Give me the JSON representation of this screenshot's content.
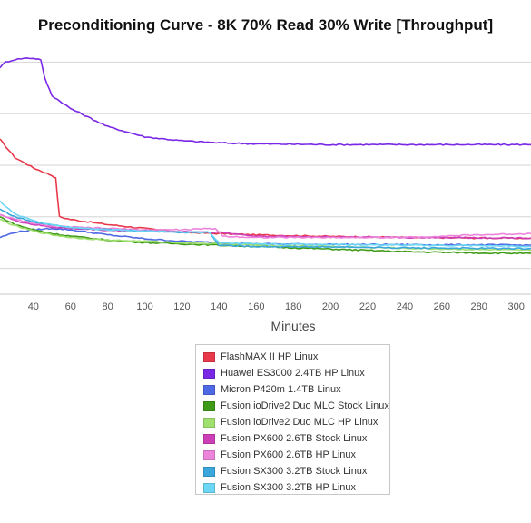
{
  "chart_data": {
    "type": "line",
    "title": "Preconditioning Curve - 8K 70% Read 30% Write [Throughput]",
    "xlabel": "Minutes",
    "ylabel": "",
    "xlim": [
      22,
      308
    ],
    "ylim": [
      0,
      100
    ],
    "x_ticks": [
      "40",
      "60",
      "80",
      "100",
      "120",
      "140",
      "160",
      "180",
      "200",
      "220",
      "240",
      "260",
      "280",
      "300"
    ],
    "x_tick_values": [
      40,
      60,
      80,
      100,
      120,
      140,
      160,
      180,
      200,
      220,
      240,
      260,
      280,
      300
    ],
    "y_grid_values": [
      10,
      30,
      50,
      70,
      90
    ],
    "grid": "horizontal",
    "legend_position": "bottom",
    "series": [
      {
        "name": "FlashMAX II HP Linux",
        "color": "#e8394a",
        "x": [
          22,
          30,
          40,
          50,
          52,
          54,
          60,
          80,
          100,
          120,
          140,
          160,
          180,
          200,
          240,
          280,
          308
        ],
        "y": [
          60,
          53,
          49,
          46,
          45,
          30,
          29,
          27,
          25.5,
          24,
          23.5,
          23,
          22.7,
          22.4,
          22,
          21.8,
          21.7
        ]
      },
      {
        "name": "Huawei ES3000 2.4TB HP Linux",
        "color": "#7a28e6",
        "x": [
          22,
          25,
          30,
          35,
          40,
          44,
          46,
          50,
          60,
          80,
          100,
          120,
          140,
          160,
          200,
          240,
          280,
          308
        ],
        "y": [
          88,
          90,
          91,
          91.5,
          91.5,
          91,
          84,
          77,
          72,
          65,
          61,
          59.5,
          58.7,
          58.3,
          58,
          58,
          58,
          58
        ]
      },
      {
        "name": "Micron P420m 1.4TB Linux",
        "color": "#4f68e4",
        "x": [
          22,
          30,
          40,
          50,
          60,
          80,
          100,
          120,
          140,
          160,
          200,
          240,
          280,
          308
        ],
        "y": [
          22,
          24,
          25,
          25.5,
          25,
          23,
          21.5,
          20.5,
          20,
          19.5,
          19.3,
          19.2,
          19.1,
          19
        ]
      },
      {
        "name": "Fusion ioDrive2 Duo MLC Stock Linux",
        "color": "#3f9a18",
        "x": [
          22,
          30,
          40,
          50,
          60,
          80,
          100,
          120,
          140,
          160,
          200,
          240,
          280,
          308
        ],
        "y": [
          30,
          27,
          25,
          23.5,
          22.5,
          21,
          20,
          19.5,
          19,
          18.5,
          17.5,
          16.5,
          16,
          15.8
        ]
      },
      {
        "name": "Fusion ioDrive2 Duo MLC HP Linux",
        "color": "#a0e06e",
        "x": [
          22,
          30,
          40,
          50,
          60,
          80,
          100,
          120,
          140,
          160,
          200,
          240,
          280,
          308
        ],
        "y": [
          29,
          26.5,
          24.5,
          23,
          22,
          21,
          20.5,
          20,
          19.5,
          19,
          18.5,
          17.8,
          17.3,
          17
        ]
      },
      {
        "name": "Fusion PX600 2.6TB Stock Linux",
        "color": "#cc3fb8",
        "x": [
          22,
          30,
          40,
          50,
          60,
          80,
          100,
          120,
          140,
          160,
          200,
          240,
          280,
          308
        ],
        "y": [
          31,
          28.5,
          27,
          26,
          25.5,
          24.8,
          24.5,
          24.3,
          24,
          22.5,
          22.2,
          22,
          21.9,
          21.8
        ]
      },
      {
        "name": "Fusion PX600 2.6TB HP Linux",
        "color": "#ec84dc",
        "x": [
          22,
          30,
          40,
          50,
          60,
          80,
          100,
          120,
          138,
          142,
          160,
          200,
          240,
          280,
          308
        ],
        "y": [
          31,
          29,
          27.5,
          26.5,
          26,
          25.5,
          25,
          25,
          25.5,
          22.5,
          22,
          22,
          22,
          23,
          23.5
        ]
      },
      {
        "name": "Fusion SX300 3.2TB Stock Linux",
        "color": "#3aa6dc",
        "x": [
          22,
          30,
          40,
          50,
          60,
          80,
          100,
          120,
          135,
          140,
          160,
          200,
          240,
          280,
          308
        ],
        "y": [
          33,
          30,
          28,
          27,
          26,
          25,
          24.5,
          24,
          24,
          19,
          18.5,
          18.3,
          18,
          17.8,
          17.7
        ]
      },
      {
        "name": "Fusion SX300 3.2TB HP Linux",
        "color": "#6cd6f5",
        "x": [
          22,
          30,
          40,
          50,
          60,
          80,
          100,
          120,
          135,
          140,
          160,
          200,
          240,
          280,
          308
        ],
        "y": [
          36,
          31,
          28.5,
          27,
          26,
          25,
          24.5,
          24,
          24,
          20,
          19.5,
          19.3,
          19,
          18.8,
          18.5
        ]
      }
    ]
  }
}
